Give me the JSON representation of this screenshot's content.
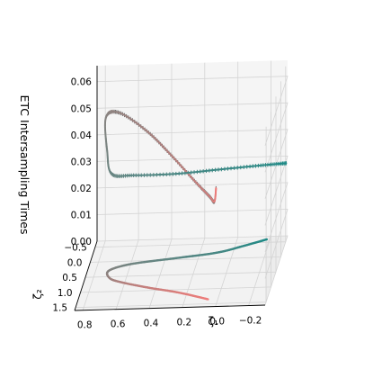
{
  "chart_data": {
    "type": "line3d",
    "xlabel": "ζ₁",
    "ylabel": "ζ₂",
    "zlabel": "ETC Intersampling Times",
    "x_ticks": [
      "0.8",
      "0.6",
      "0.4",
      "0.2",
      "0.0",
      "−0.2"
    ],
    "y_ticks": [
      "−0.5",
      "0.0",
      "0.5",
      "1.0",
      "1.5"
    ],
    "z_ticks": [
      "0.00",
      "0.01",
      "0.02",
      "0.03",
      "0.04",
      "0.05",
      "0.06"
    ],
    "xlim": [
      -0.3,
      0.85
    ],
    "ylim": [
      -0.7,
      1.6
    ],
    "zlim": [
      0.0,
      0.066
    ],
    "grid": true,
    "colors": {
      "start": "#f07c7a",
      "end": "#1e8a86",
      "steps": "#6f6f6f"
    },
    "series": [
      {
        "kind": "intersampling-times (stepped)",
        "points": [
          [
            0.02,
            1.2,
            0.04
          ],
          [
            0.03,
            1.2,
            0.035
          ],
          [
            0.06,
            1.2,
            0.037
          ],
          [
            0.15,
            1.2,
            0.043
          ],
          [
            0.3,
            1.1,
            0.052
          ],
          [
            0.45,
            1.0,
            0.06
          ],
          [
            0.62,
            0.9,
            0.066
          ],
          [
            0.72,
            0.6,
            0.061
          ],
          [
            0.73,
            0.3,
            0.045
          ],
          [
            0.72,
            0.0,
            0.033
          ],
          [
            0.6,
            -0.2,
            0.03
          ],
          [
            0.35,
            -0.3,
            0.029
          ],
          [
            0.1,
            -0.4,
            0.029
          ],
          [
            -0.15,
            -0.5,
            0.029
          ],
          [
            -0.3,
            -0.55,
            0.029
          ]
        ]
      },
      {
        "kind": "state trajectory (z = 0)",
        "points": [
          [
            0.06,
            1.35,
            0
          ],
          [
            0.25,
            1.1,
            0
          ],
          [
            0.45,
            0.9,
            0
          ],
          [
            0.62,
            0.7,
            0
          ],
          [
            0.7,
            0.55,
            0
          ],
          [
            0.72,
            0.3,
            0
          ],
          [
            0.6,
            0.1,
            0
          ],
          [
            0.35,
            -0.05,
            0
          ],
          [
            0.1,
            -0.2,
            0
          ],
          [
            -0.05,
            -0.4,
            0
          ],
          [
            -0.18,
            -0.6,
            0
          ]
        ]
      }
    ]
  }
}
